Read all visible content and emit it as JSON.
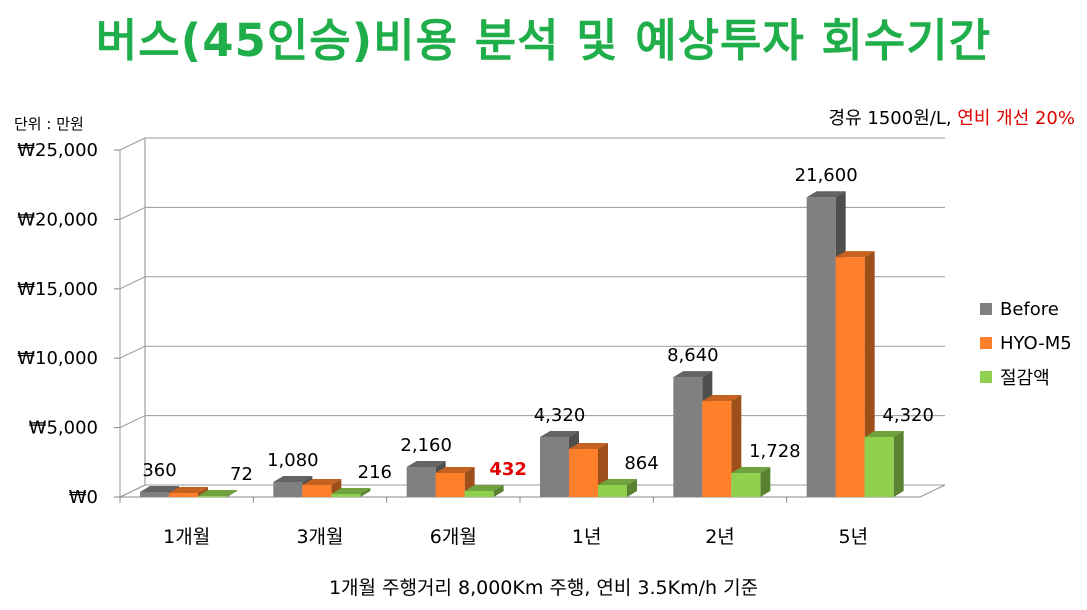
{
  "title": "버스(45인승)비용 분석 및 예상투자 회수기간",
  "unit_label": "단위 : 만원",
  "note": {
    "prefix": "경유 1500원/L, ",
    "highlight": "연비 개선 20%"
  },
  "footer": "1개월 주행거리 8,000Km 주행, 연비 3.5Km/h 기준",
  "colors": {
    "title": "#1fae4a",
    "before": "#808080",
    "hyo": "#ff7f2a",
    "saving": "#8fd14f",
    "highlight_label": "#e00000"
  },
  "chart_data": {
    "type": "bar",
    "title": "",
    "xlabel": "",
    "ylabel": "",
    "ylim": [
      0,
      25000
    ],
    "yticks": [
      0,
      5000,
      10000,
      15000,
      20000,
      25000
    ],
    "ytick_labels": [
      "₩0",
      "₩5,000",
      "₩10,000",
      "₩15,000",
      "₩20,000",
      "₩25,000"
    ],
    "grid": true,
    "legend_position": "right",
    "categories": [
      "1개월",
      "3개월",
      "6개월",
      "1년",
      "2년",
      "5년"
    ],
    "series": [
      {
        "name": "Before",
        "values": [
          360,
          1080,
          2160,
          4320,
          8640,
          21600
        ]
      },
      {
        "name": "HYO-M5",
        "values": [
          288,
          864,
          1728,
          3456,
          6912,
          17280
        ]
      },
      {
        "name": "절감액",
        "values": [
          72,
          216,
          432,
          864,
          1728,
          4320
        ]
      }
    ],
    "data_labels": [
      {
        "category": 0,
        "series": 0,
        "text": "360"
      },
      {
        "category": 0,
        "series": 2,
        "text": "72"
      },
      {
        "category": 1,
        "series": 0,
        "text": "1,080"
      },
      {
        "category": 1,
        "series": 2,
        "text": "216"
      },
      {
        "category": 2,
        "series": 0,
        "text": "2,160"
      },
      {
        "category": 2,
        "series": 2,
        "text": "432",
        "highlight": true
      },
      {
        "category": 3,
        "series": 0,
        "text": "4,320"
      },
      {
        "category": 3,
        "series": 2,
        "text": "864"
      },
      {
        "category": 4,
        "series": 0,
        "text": "8,640"
      },
      {
        "category": 4,
        "series": 2,
        "text": "1,728"
      },
      {
        "category": 5,
        "series": 0,
        "text": "21,600"
      },
      {
        "category": 5,
        "series": 2,
        "text": "4,320"
      }
    ]
  }
}
